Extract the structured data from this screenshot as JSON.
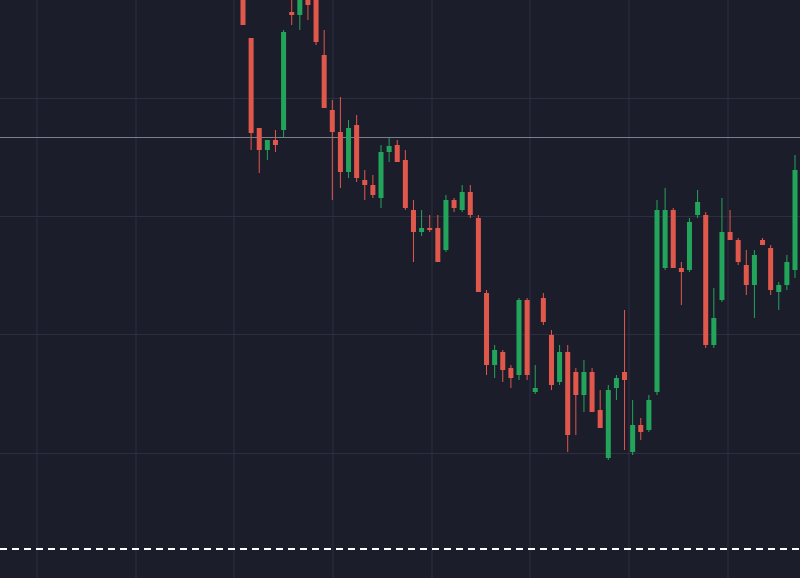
{
  "chart_data": {
    "type": "candlestick",
    "open": [
      578,
      540,
      450,
      428,
      438,
      448,
      566,
      563,
      578,
      578,
      523,
      468,
      446,
      406,
      453,
      398,
      393,
      380,
      426,
      433,
      418,
      368,
      346,
      350,
      350,
      328,
      378,
      368,
      386,
      360,
      285,
      213,
      226,
      210,
      203,
      278,
      186,
      280,
      243,
      196,
      226,
      206,
      183,
      206,
      168,
      120,
      190,
      206,
      126,
      153,
      148,
      186,
      310,
      368,
      310,
      308,
      363,
      363,
      233,
      278,
      346,
      338,
      313,
      293,
      338,
      330,
      286,
      293,
      308
    ],
    "high": [
      578,
      540,
      450,
      438,
      448,
      548,
      578,
      578,
      578,
      578,
      548,
      478,
      481,
      458,
      463,
      408,
      403,
      433,
      440,
      438,
      428,
      378,
      368,
      363,
      363,
      383,
      380,
      393,
      393,
      363,
      288,
      233,
      228,
      213,
      280,
      280,
      213,
      285,
      248,
      233,
      233,
      210,
      218,
      210,
      188,
      193,
      203,
      268,
      178,
      160,
      183,
      378,
      390,
      370,
      316,
      360,
      388,
      366,
      290,
      380,
      368,
      340,
      328,
      328,
      340,
      333,
      296,
      323,
      423
    ],
    "low": [
      553,
      428,
      405,
      418,
      426,
      440,
      553,
      548,
      558,
      533,
      470,
      378,
      390,
      400,
      396,
      378,
      380,
      370,
      416,
      416,
      368,
      316,
      342,
      346,
      316,
      326,
      366,
      366,
      360,
      286,
      203,
      200,
      196,
      190,
      198,
      198,
      184,
      253,
      188,
      193,
      126,
      143,
      166,
      166,
      150,
      118,
      178,
      128,
      123,
      138,
      146,
      183,
      308,
      310,
      273,
      306,
      360,
      230,
      230,
      276,
      338,
      313,
      283,
      260,
      333,
      283,
      268,
      288,
      300
    ],
    "close": [
      553,
      445,
      428,
      438,
      433,
      546,
      563,
      578,
      573,
      536,
      470,
      446,
      406,
      450,
      400,
      393,
      383,
      426,
      432,
      416,
      370,
      346,
      350,
      348,
      316,
      378,
      370,
      386,
      363,
      286,
      213,
      228,
      208,
      200,
      278,
      203,
      190,
      256,
      193,
      226,
      143,
      183,
      206,
      166,
      150,
      188,
      200,
      198,
      153,
      146,
      178,
      368,
      368,
      310,
      306,
      356,
      376,
      233,
      260,
      346,
      338,
      316,
      293,
      323,
      333,
      288,
      293,
      316,
      408
    ],
    "up_color": "#22a55b",
    "down_color": "#e0574b",
    "ylim": [
      0,
      578
    ],
    "yticks": [
      125,
      244,
      362,
      480
    ],
    "grid": true
  }
}
